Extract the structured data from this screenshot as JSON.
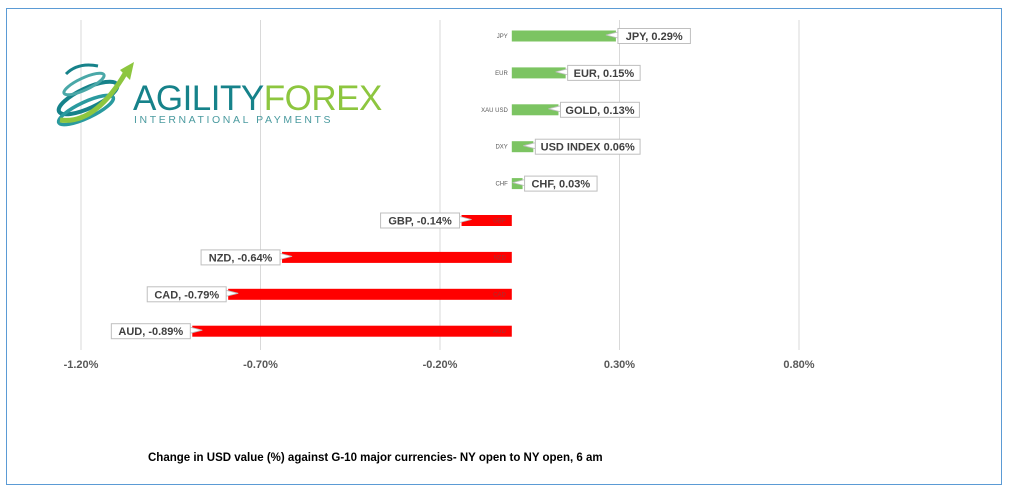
{
  "logo": {
    "brand_part1": "AGILITY",
    "brand_part2": "FOREX",
    "tagline": "INTERNATIONAL PAYMENTS",
    "color_primary": "#16828a",
    "color_accent": "#8dc63f"
  },
  "caption": "Change in  USD value (%)  against  G-10 major currencies-  NY open to  NY open, 6 am",
  "chart_data": {
    "type": "bar",
    "orientation": "horizontal",
    "title": "",
    "xlabel": "",
    "ylabel": "",
    "xlim": [
      -1.2,
      1.0
    ],
    "xticks": [
      -1.2,
      -0.7,
      -0.2,
      0.3,
      0.8
    ],
    "xtick_labels": [
      "-1.20%",
      "-0.70%",
      "-0.20%",
      "0.30%",
      "0.80%"
    ],
    "grid": "vertical",
    "legend": "none",
    "positive_color": "#7cc462",
    "negative_color": "#ff0000",
    "categories": [
      "JPY",
      "EUR",
      "XAU USD",
      "DXY",
      "CHF",
      "GBP",
      "NZD",
      "CAD",
      "AUD"
    ],
    "values": [
      0.29,
      0.15,
      0.13,
      0.06,
      0.03,
      -0.14,
      -0.64,
      -0.79,
      -0.89
    ],
    "data_labels": [
      "JPY, 0.29%",
      "EUR, 0.15%",
      "GOLD, 0.13%",
      "USD INDEX 0.06%",
      "CHF, 0.03%",
      "GBP, -0.14%",
      "NZD, -0.64%",
      "CAD, -0.79%",
      "AUD, -0.89%"
    ]
  }
}
